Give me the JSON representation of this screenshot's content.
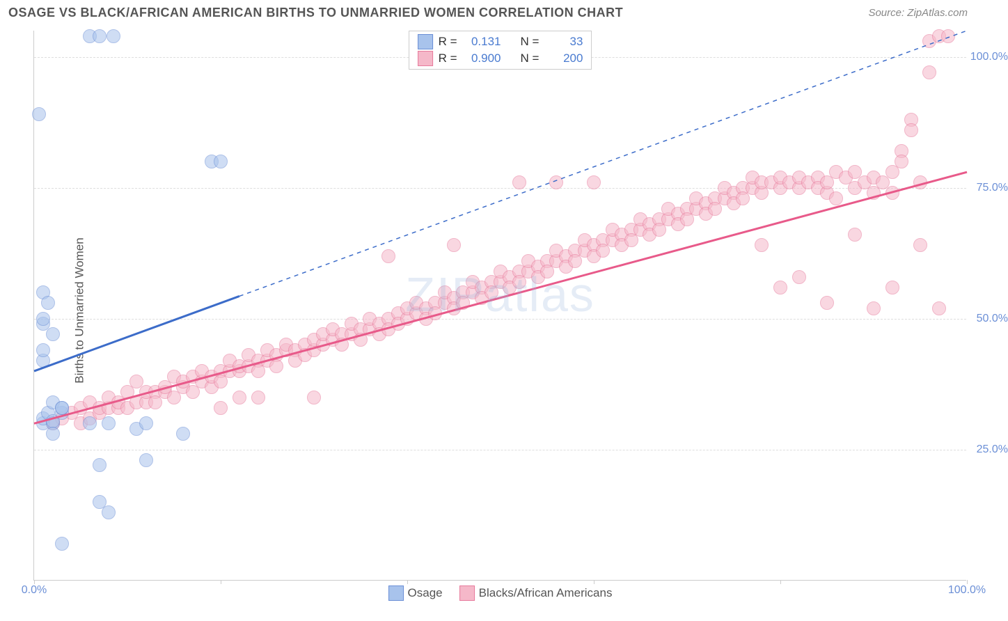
{
  "title": "OSAGE VS BLACK/AFRICAN AMERICAN BIRTHS TO UNMARRIED WOMEN CORRELATION CHART",
  "source": "Source: ZipAtlas.com",
  "ylabel": "Births to Unmarried Women",
  "watermark": "ZIPatlas",
  "chart": {
    "type": "scatter",
    "xlim": [
      0,
      100
    ],
    "ylim": [
      0,
      105
    ],
    "ytick_values": [
      25,
      50,
      75,
      100
    ],
    "ytick_labels": [
      "25.0%",
      "50.0%",
      "75.0%",
      "100.0%"
    ],
    "xtick_values": [
      0,
      20,
      40,
      60,
      80,
      100
    ],
    "xtick_labels_shown": {
      "0": "0.0%",
      "100": "100.0%"
    },
    "background_color": "#ffffff",
    "grid_color": "#dddddd",
    "marker_size": 20,
    "marker_opacity": 0.55,
    "series": {
      "osage": {
        "label": "Osage",
        "legend_label": "Osage",
        "color_fill": "#a8c3ec",
        "color_stroke": "#6b8fd6",
        "trend_color": "#3c6cc9",
        "r_value": "0.131",
        "n_value": "33",
        "trend_line": {
          "x1": 0,
          "y1": 40,
          "x2": 100,
          "y2": 105,
          "solid_until_x": 22
        },
        "points": [
          [
            1,
            30
          ],
          [
            1,
            31
          ],
          [
            1.5,
            32
          ],
          [
            2,
            34
          ],
          [
            2,
            30
          ],
          [
            2,
            30.5
          ],
          [
            3,
            32
          ],
          [
            3,
            33
          ],
          [
            1,
            49
          ],
          [
            1,
            50
          ],
          [
            2,
            47
          ],
          [
            1,
            55
          ],
          [
            1.5,
            53
          ],
          [
            0.5,
            89
          ],
          [
            6,
            104
          ],
          [
            7,
            104
          ],
          [
            8.5,
            104
          ],
          [
            2,
            28
          ],
          [
            6,
            30
          ],
          [
            8,
            30
          ],
          [
            11,
            29
          ],
          [
            12,
            30
          ],
          [
            16,
            28
          ],
          [
            7,
            22
          ],
          [
            12,
            23
          ],
          [
            7,
            15
          ],
          [
            8,
            13
          ],
          [
            3,
            7
          ],
          [
            19,
            80
          ],
          [
            20,
            80
          ],
          [
            1,
            42
          ],
          [
            1,
            44
          ],
          [
            3,
            33
          ]
        ]
      },
      "black": {
        "label": "Blacks/African Americans",
        "legend_label": "Blacks/African Americans",
        "color_fill": "#f5b8c9",
        "color_stroke": "#e77a9c",
        "trend_color": "#e85a8a",
        "r_value": "0.900",
        "n_value": "200",
        "trend_line": {
          "x1": 0,
          "y1": 30,
          "x2": 100,
          "y2": 78,
          "solid_until_x": 100
        },
        "points": [
          [
            2,
            30
          ],
          [
            3,
            31
          ],
          [
            4,
            32
          ],
          [
            5,
            30
          ],
          [
            5,
            33
          ],
          [
            6,
            31
          ],
          [
            6,
            34
          ],
          [
            7,
            32
          ],
          [
            7,
            33
          ],
          [
            8,
            33
          ],
          [
            8,
            35
          ],
          [
            9,
            33
          ],
          [
            9,
            34
          ],
          [
            10,
            33
          ],
          [
            10,
            36
          ],
          [
            11,
            34
          ],
          [
            11,
            38
          ],
          [
            12,
            34
          ],
          [
            12,
            36
          ],
          [
            13,
            36
          ],
          [
            13,
            34
          ],
          [
            14,
            36
          ],
          [
            14,
            37
          ],
          [
            15,
            35
          ],
          [
            15,
            39
          ],
          [
            16,
            37
          ],
          [
            16,
            38
          ],
          [
            17,
            36
          ],
          [
            17,
            39
          ],
          [
            18,
            38
          ],
          [
            18,
            40
          ],
          [
            19,
            37
          ],
          [
            19,
            39
          ],
          [
            20,
            40
          ],
          [
            20,
            38
          ],
          [
            21,
            40
          ],
          [
            21,
            42
          ],
          [
            22,
            40
          ],
          [
            22,
            41
          ],
          [
            23,
            41
          ],
          [
            23,
            43
          ],
          [
            24,
            42
          ],
          [
            24,
            40
          ],
          [
            25,
            42
          ],
          [
            25,
            44
          ],
          [
            26,
            43
          ],
          [
            26,
            41
          ],
          [
            27,
            44
          ],
          [
            27,
            45
          ],
          [
            28,
            44
          ],
          [
            28,
            42
          ],
          [
            29,
            45
          ],
          [
            29,
            43
          ],
          [
            30,
            44
          ],
          [
            30,
            46
          ],
          [
            31,
            45
          ],
          [
            31,
            47
          ],
          [
            32,
            46
          ],
          [
            32,
            48
          ],
          [
            33,
            47
          ],
          [
            33,
            45
          ],
          [
            34,
            47
          ],
          [
            34,
            49
          ],
          [
            35,
            48
          ],
          [
            35,
            46
          ],
          [
            36,
            48
          ],
          [
            36,
            50
          ],
          [
            37,
            49
          ],
          [
            37,
            47
          ],
          [
            38,
            50
          ],
          [
            38,
            48
          ],
          [
            39,
            51
          ],
          [
            39,
            49
          ],
          [
            40,
            50
          ],
          [
            40,
            52
          ],
          [
            41,
            51
          ],
          [
            41,
            53
          ],
          [
            42,
            52
          ],
          [
            42,
            50
          ],
          [
            43,
            53
          ],
          [
            43,
            51
          ],
          [
            44,
            53
          ],
          [
            44,
            55
          ],
          [
            45,
            54
          ],
          [
            45,
            52
          ],
          [
            46,
            55
          ],
          [
            46,
            53
          ],
          [
            47,
            55
          ],
          [
            47,
            57
          ],
          [
            48,
            56
          ],
          [
            48,
            54
          ],
          [
            49,
            57
          ],
          [
            49,
            55
          ],
          [
            50,
            57
          ],
          [
            50,
            59
          ],
          [
            51,
            58
          ],
          [
            51,
            56
          ],
          [
            52,
            59
          ],
          [
            52,
            57
          ],
          [
            53,
            59
          ],
          [
            53,
            61
          ],
          [
            54,
            60
          ],
          [
            54,
            58
          ],
          [
            55,
            61
          ],
          [
            55,
            59
          ],
          [
            56,
            61
          ],
          [
            56,
            63
          ],
          [
            57,
            62
          ],
          [
            57,
            60
          ],
          [
            58,
            63
          ],
          [
            58,
            61
          ],
          [
            59,
            63
          ],
          [
            59,
            65
          ],
          [
            60,
            64
          ],
          [
            60,
            62
          ],
          [
            61,
            65
          ],
          [
            61,
            63
          ],
          [
            62,
            65
          ],
          [
            62,
            67
          ],
          [
            63,
            66
          ],
          [
            63,
            64
          ],
          [
            64,
            67
          ],
          [
            64,
            65
          ],
          [
            65,
            67
          ],
          [
            65,
            69
          ],
          [
            66,
            68
          ],
          [
            66,
            66
          ],
          [
            67,
            69
          ],
          [
            67,
            67
          ],
          [
            68,
            69
          ],
          [
            68,
            71
          ],
          [
            69,
            70
          ],
          [
            69,
            68
          ],
          [
            70,
            71
          ],
          [
            70,
            69
          ],
          [
            71,
            71
          ],
          [
            71,
            73
          ],
          [
            72,
            72
          ],
          [
            72,
            70
          ],
          [
            73,
            73
          ],
          [
            73,
            71
          ],
          [
            74,
            73
          ],
          [
            74,
            75
          ],
          [
            75,
            74
          ],
          [
            75,
            72
          ],
          [
            76,
            75
          ],
          [
            76,
            73
          ],
          [
            77,
            75
          ],
          [
            77,
            77
          ],
          [
            78,
            74
          ],
          [
            78,
            76
          ],
          [
            79,
            76
          ],
          [
            80,
            75
          ],
          [
            80,
            77
          ],
          [
            81,
            76
          ],
          [
            82,
            75
          ],
          [
            82,
            77
          ],
          [
            83,
            76
          ],
          [
            84,
            77
          ],
          [
            84,
            75
          ],
          [
            85,
            74
          ],
          [
            85,
            76
          ],
          [
            86,
            73
          ],
          [
            86,
            78
          ],
          [
            87,
            77
          ],
          [
            88,
            75
          ],
          [
            88,
            78
          ],
          [
            89,
            76
          ],
          [
            90,
            77
          ],
          [
            90,
            74
          ],
          [
            91,
            76
          ],
          [
            92,
            74
          ],
          [
            92,
            78
          ],
          [
            93,
            82
          ],
          [
            93,
            80
          ],
          [
            94,
            88
          ],
          [
            94,
            86
          ],
          [
            95,
            76
          ],
          [
            95,
            64
          ],
          [
            96,
            97
          ],
          [
            96,
            103
          ],
          [
            97,
            104
          ],
          [
            98,
            104
          ],
          [
            38,
            62
          ],
          [
            45,
            64
          ],
          [
            52,
            76
          ],
          [
            56,
            76
          ],
          [
            60,
            76
          ],
          [
            78,
            64
          ],
          [
            80,
            56
          ],
          [
            82,
            58
          ],
          [
            85,
            53
          ],
          [
            90,
            52
          ],
          [
            92,
            56
          ],
          [
            97,
            52
          ],
          [
            20,
            33
          ],
          [
            22,
            35
          ],
          [
            24,
            35
          ],
          [
            30,
            35
          ],
          [
            88,
            66
          ]
        ]
      }
    }
  },
  "legend": {
    "r_label": "R =",
    "n_label": "N ="
  }
}
